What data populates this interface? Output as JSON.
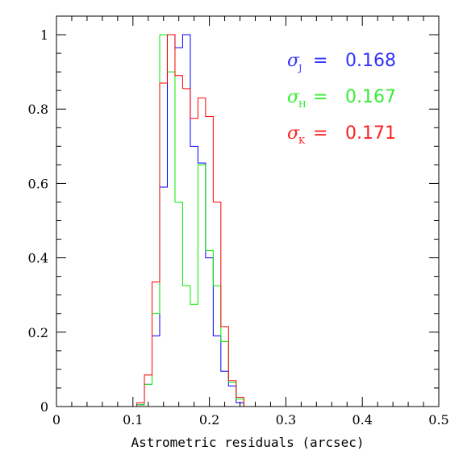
{
  "chart_data": {
    "type": "histogram",
    "title": "",
    "xlabel": "Astrometric residuals (arcsec)",
    "ylabel": "",
    "xlim": [
      0,
      0.5
    ],
    "ylim": [
      0,
      1.05
    ],
    "xticks": [
      "0",
      "0.1",
      "0.2",
      "0.3",
      "0.4",
      "0.5"
    ],
    "yticks": [
      "0",
      "0.2",
      "0.4",
      "0.6",
      "0.8",
      "1"
    ],
    "grid": false,
    "bin_edges": [
      0.0,
      0.105,
      0.115,
      0.125,
      0.135,
      0.145,
      0.155,
      0.165,
      0.175,
      0.185,
      0.195,
      0.205,
      0.215,
      0.225,
      0.235,
      0.245,
      0.5
    ],
    "series": [
      {
        "name": "J",
        "color": "#0000ff",
        "values": [
          0,
          0.005,
          0.06,
          0.19,
          0.59,
          1.0,
          0.965,
          1.0,
          0.7,
          0.655,
          0.4,
          0.19,
          0.095,
          0.055,
          0.01,
          0
        ]
      },
      {
        "name": "H",
        "color": "#00ee00",
        "values": [
          0,
          0.005,
          0.06,
          0.25,
          1.0,
          0.9,
          0.55,
          0.325,
          0.275,
          0.65,
          0.42,
          0.325,
          0.175,
          0.065,
          0.02,
          0
        ]
      },
      {
        "name": "K",
        "color": "#ff0000",
        "values": [
          0,
          0.01,
          0.085,
          0.335,
          0.87,
          1.0,
          0.89,
          0.855,
          0.775,
          0.83,
          0.78,
          0.55,
          0.215,
          0.07,
          0.025,
          0
        ]
      }
    ],
    "legend": {
      "placement": "top-right",
      "entries": [
        {
          "symbol": "σ",
          "sub": "J",
          "eq": "=",
          "value": "0.168",
          "color": "#3333ff"
        },
        {
          "symbol": "σ",
          "sub": "H",
          "eq": "=",
          "value": "0.167",
          "color": "#33ee33"
        },
        {
          "symbol": "σ",
          "sub": "K",
          "eq": "=",
          "value": "0.171",
          "color": "#ff2222"
        }
      ]
    }
  }
}
